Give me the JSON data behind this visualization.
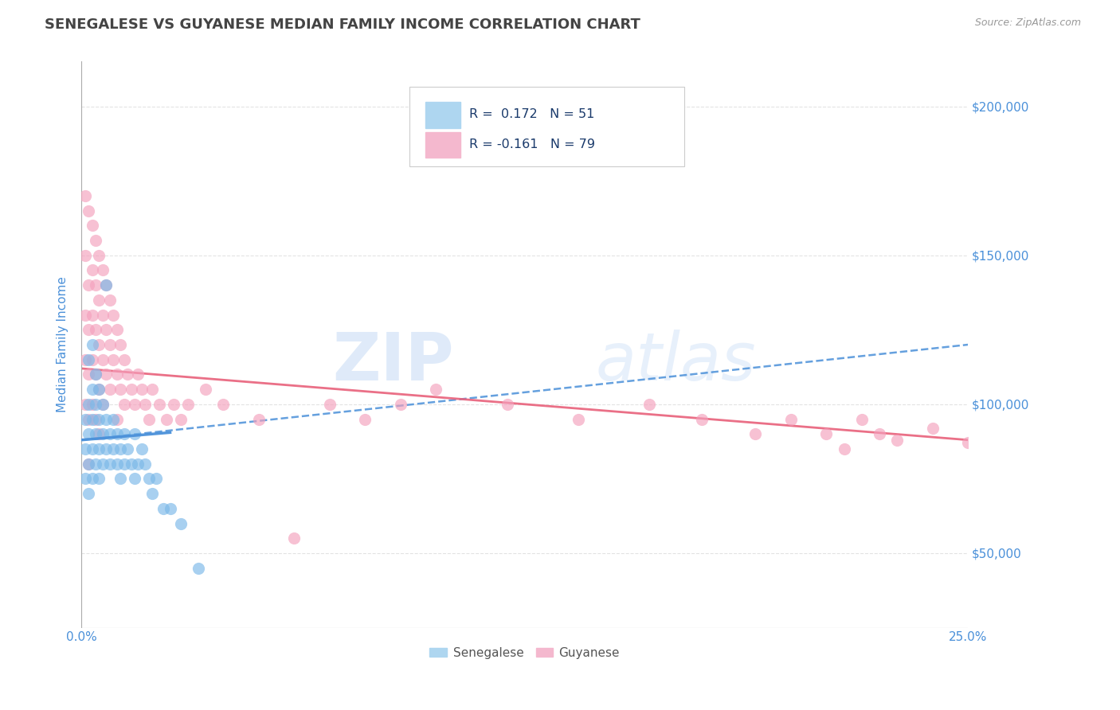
{
  "title": "SENEGALESE VS GUYANESE MEDIAN FAMILY INCOME CORRELATION CHART",
  "source": "Source: ZipAtlas.com",
  "ylabel": "Median Family Income",
  "xlim": [
    0.0,
    0.25
  ],
  "ylim": [
    25000,
    215000
  ],
  "xticks": [
    0.0,
    0.025,
    0.05,
    0.075,
    0.1,
    0.125,
    0.15,
    0.175,
    0.2,
    0.225,
    0.25
  ],
  "xtick_labels_show": [
    "0.0%",
    "",
    "",
    "",
    "",
    "",
    "",
    "",
    "",
    "",
    "25.0%"
  ],
  "yticks": [
    50000,
    100000,
    150000,
    200000
  ],
  "ytick_labels": [
    "$50,000",
    "$100,000",
    "$150,000",
    "$200,000"
  ],
  "watermark_zip": "ZIP",
  "watermark_atlas": "atlas",
  "legend_color": "#1a3a6b",
  "senegalese_scatter_color": "#7ab8e8",
  "guyanese_scatter_color": "#f4a0bc",
  "senegalese_line_color": "#4a90d9",
  "guyanese_line_color": "#e8607a",
  "title_color": "#444444",
  "axis_label_color": "#4a90d9",
  "tick_color": "#4a90d9",
  "grid_color": "#dddddd",
  "background_color": "#ffffff",
  "legend_box_color": "#eeeeee",
  "sen_r": "0.172",
  "sen_n": "51",
  "guy_r": "-0.161",
  "guy_n": "79",
  "senegalese_x": [
    0.001,
    0.001,
    0.001,
    0.002,
    0.002,
    0.002,
    0.002,
    0.002,
    0.003,
    0.003,
    0.003,
    0.003,
    0.003,
    0.004,
    0.004,
    0.004,
    0.004,
    0.005,
    0.005,
    0.005,
    0.005,
    0.006,
    0.006,
    0.006,
    0.007,
    0.007,
    0.007,
    0.008,
    0.008,
    0.009,
    0.009,
    0.01,
    0.01,
    0.011,
    0.011,
    0.012,
    0.012,
    0.013,
    0.014,
    0.015,
    0.015,
    0.016,
    0.017,
    0.018,
    0.019,
    0.02,
    0.021,
    0.023,
    0.025,
    0.028,
    0.033
  ],
  "senegalese_y": [
    75000,
    85000,
    95000,
    70000,
    80000,
    90000,
    100000,
    115000,
    75000,
    85000,
    95000,
    105000,
    120000,
    80000,
    90000,
    100000,
    110000,
    75000,
    85000,
    95000,
    105000,
    80000,
    90000,
    100000,
    85000,
    95000,
    140000,
    80000,
    90000,
    85000,
    95000,
    80000,
    90000,
    75000,
    85000,
    80000,
    90000,
    85000,
    80000,
    75000,
    90000,
    80000,
    85000,
    80000,
    75000,
    70000,
    75000,
    65000,
    65000,
    60000,
    45000
  ],
  "guyanese_x": [
    0.001,
    0.001,
    0.001,
    0.001,
    0.001,
    0.002,
    0.002,
    0.002,
    0.002,
    0.002,
    0.002,
    0.003,
    0.003,
    0.003,
    0.003,
    0.003,
    0.004,
    0.004,
    0.004,
    0.004,
    0.004,
    0.005,
    0.005,
    0.005,
    0.005,
    0.005,
    0.006,
    0.006,
    0.006,
    0.006,
    0.007,
    0.007,
    0.007,
    0.008,
    0.008,
    0.008,
    0.009,
    0.009,
    0.01,
    0.01,
    0.01,
    0.011,
    0.011,
    0.012,
    0.012,
    0.013,
    0.014,
    0.015,
    0.016,
    0.017,
    0.018,
    0.019,
    0.02,
    0.022,
    0.024,
    0.026,
    0.028,
    0.03,
    0.035,
    0.04,
    0.05,
    0.06,
    0.07,
    0.08,
    0.09,
    0.1,
    0.12,
    0.14,
    0.16,
    0.175,
    0.19,
    0.2,
    0.21,
    0.215,
    0.22,
    0.225,
    0.23,
    0.24,
    0.25
  ],
  "guyanese_y": [
    170000,
    150000,
    130000,
    115000,
    100000,
    165000,
    140000,
    125000,
    110000,
    95000,
    80000,
    160000,
    145000,
    130000,
    115000,
    100000,
    155000,
    140000,
    125000,
    110000,
    95000,
    150000,
    135000,
    120000,
    105000,
    90000,
    145000,
    130000,
    115000,
    100000,
    140000,
    125000,
    110000,
    135000,
    120000,
    105000,
    130000,
    115000,
    125000,
    110000,
    95000,
    120000,
    105000,
    115000,
    100000,
    110000,
    105000,
    100000,
    110000,
    105000,
    100000,
    95000,
    105000,
    100000,
    95000,
    100000,
    95000,
    100000,
    105000,
    100000,
    95000,
    55000,
    100000,
    95000,
    100000,
    105000,
    100000,
    95000,
    100000,
    95000,
    90000,
    95000,
    90000,
    85000,
    95000,
    90000,
    88000,
    92000,
    87000
  ],
  "sen_line_x": [
    0.0,
    0.25
  ],
  "sen_line_y": [
    88000,
    120000
  ],
  "guy_line_x": [
    0.0,
    0.25
  ],
  "guy_line_y": [
    112000,
    88000
  ]
}
